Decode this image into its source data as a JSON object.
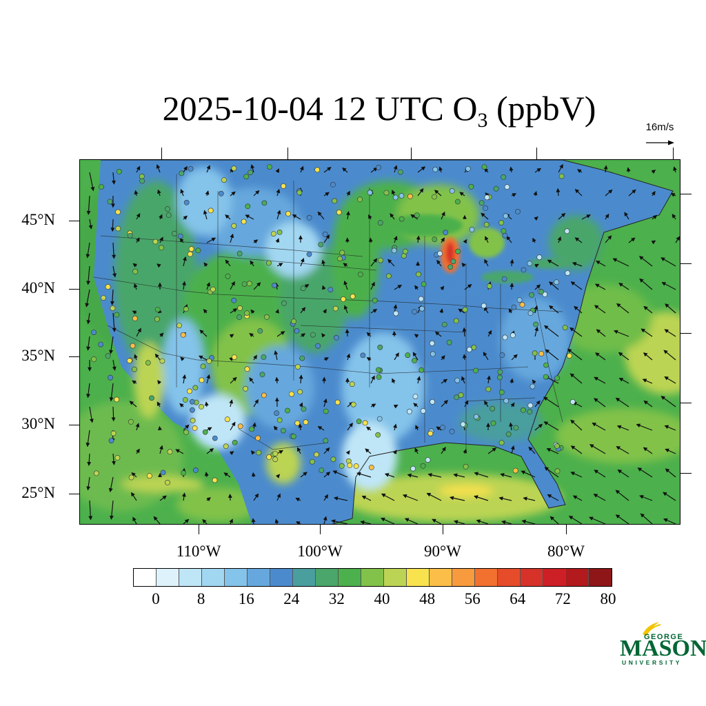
{
  "title": {
    "main": "2025-10-04 12 UTC O",
    "sub": "3",
    "unit": " (ppbV)"
  },
  "wind_scale": {
    "label": "16m/s"
  },
  "lat_labels": [
    "45°N",
    "40°N",
    "35°N",
    "30°N",
    "25°N"
  ],
  "lon_labels": [
    "110°W",
    "100°W",
    "90°W",
    "80°W"
  ],
  "colorbar": {
    "colors": [
      "#ffffff",
      "#ddf2fb",
      "#bfe6f7",
      "#a2d7f2",
      "#84c3ea",
      "#66a8dd",
      "#4b8bcd",
      "#4a9e9e",
      "#4aa66a",
      "#4cb04c",
      "#82c24a",
      "#bcd453",
      "#f8e24e",
      "#fbbe48",
      "#f89a3e",
      "#f2712f",
      "#e64c2a",
      "#d6322a",
      "#cc1f26",
      "#b21a1e",
      "#8e1518"
    ],
    "tick_labels": [
      "0",
      "8",
      "16",
      "24",
      "32",
      "40",
      "48",
      "56",
      "64",
      "72",
      "80"
    ]
  },
  "logo": {
    "line1": "GEORGE",
    "line2": "MASON",
    "line3": "UNIVERSITY"
  }
}
